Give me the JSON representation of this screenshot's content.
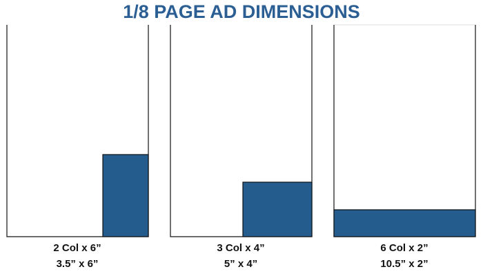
{
  "header": {
    "title": "1/8 PAGE AD DIMENSIONS"
  },
  "ads": [
    {
      "columns": "2 Col x 6”",
      "inches": "3.5” x 6”"
    },
    {
      "columns": "3 Col x 4”",
      "inches": "5” x 4”"
    },
    {
      "columns": "6 Col x 2”",
      "inches": "10.5” x 2”"
    }
  ]
}
